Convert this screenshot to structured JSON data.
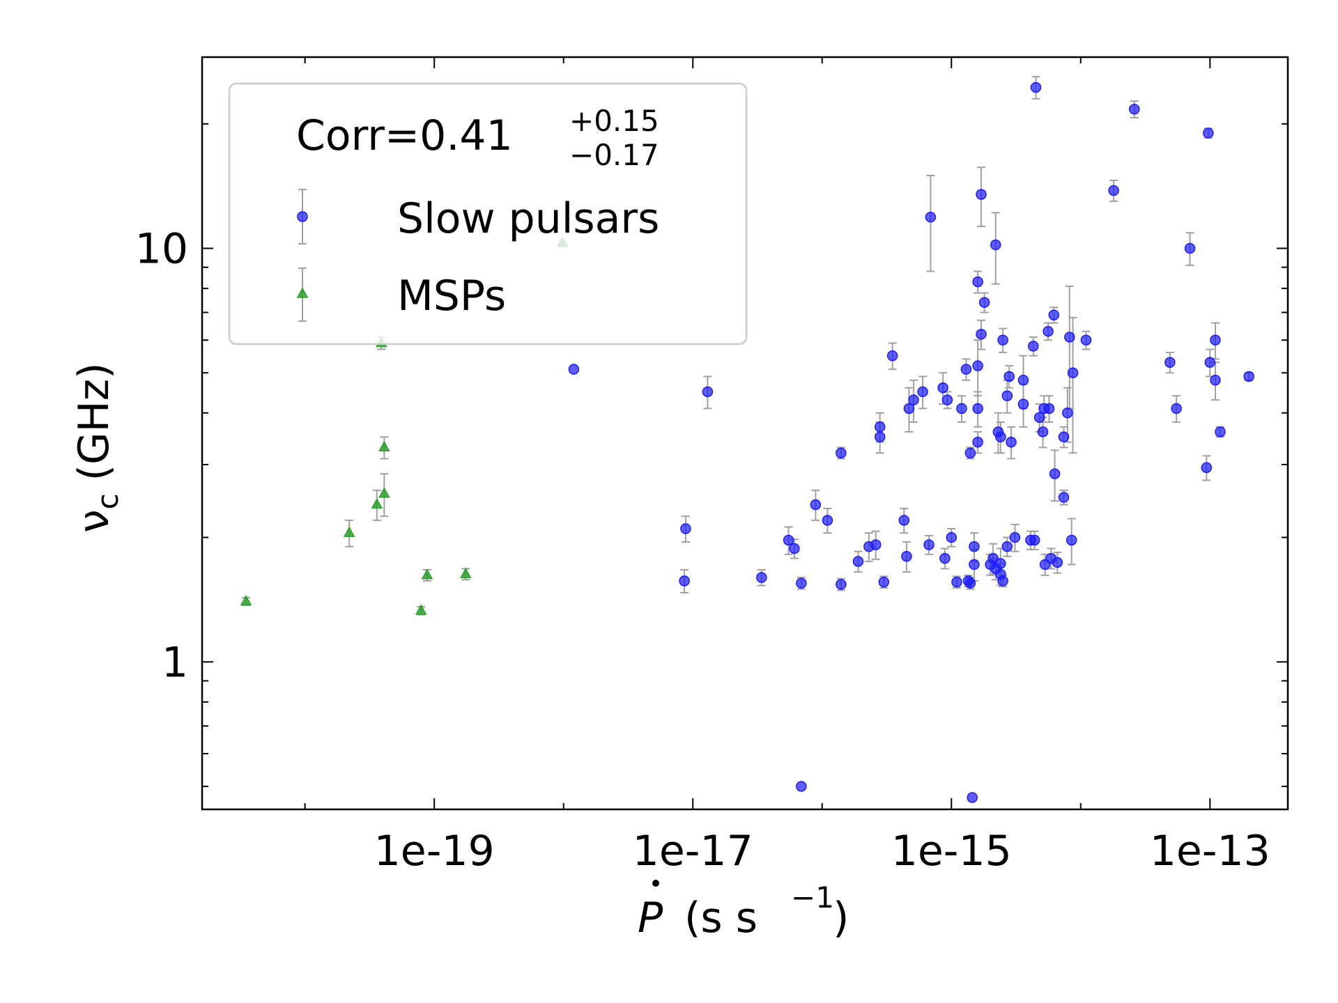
{
  "chart_data": {
    "type": "scatter",
    "x_scale": "log",
    "y_scale": "log",
    "xlim": [
      1.6e-21,
      4e-13
    ],
    "ylim": [
      0.44,
      29
    ],
    "x_ticks": [
      {
        "value": 1e-19,
        "label": "1e-19"
      },
      {
        "value": 1e-17,
        "label": "1e-17"
      },
      {
        "value": 1e-15,
        "label": "1e-15"
      },
      {
        "value": 1e-13,
        "label": "1e-13"
      }
    ],
    "y_ticks": [
      {
        "value": 1,
        "label": "1"
      },
      {
        "value": 10,
        "label": "10"
      }
    ],
    "xlabel_symbol": "P",
    "xlabel_units": "(s s",
    "xlabel_exp": "−1",
    "xlabel_close": ")",
    "ylabel_symbol": "ν",
    "ylabel_sub": "c",
    "ylabel_units": "(GHz)",
    "legend": {
      "placement": "upper-left",
      "corr_prefix": "Corr=0.41",
      "corr_plus": "+0.15",
      "corr_minus": "−0.17",
      "entries": [
        "Slow pulsars",
        "MSPs"
      ]
    },
    "colors": {
      "slow_pulsars": "#1a1aff",
      "msps": "#2ca02c",
      "errorbar": "#a0a0a0"
    },
    "series": [
      {
        "name": "Slow pulsars",
        "marker": "circle",
        "points": [
          [
            4.5e-15,
            24.5,
            1.5
          ],
          [
            2.6e-14,
            21.7,
            1.0
          ],
          [
            1.8e-14,
            13.8,
            0.8
          ],
          [
            9.7e-14,
            19.0,
            0.5
          ],
          [
            6.9e-16,
            11.9,
            3.1
          ],
          [
            1.7e-15,
            13.5,
            2.2
          ],
          [
            2.2e-15,
            10.2,
            2.0
          ],
          [
            7e-14,
            10.0,
            0.9
          ],
          [
            1.2e-18,
            5.1,
            0.0
          ],
          [
            1.6e-15,
            8.3,
            0.5
          ],
          [
            1.8e-15,
            7.4,
            0.4
          ],
          [
            1.7e-15,
            6.2,
            0.5
          ],
          [
            2.5e-15,
            6.0,
            0.4
          ],
          [
            4.3e-15,
            5.8,
            0.3
          ],
          [
            5.6e-15,
            6.3,
            0.3
          ],
          [
            6.2e-15,
            6.9,
            0.3
          ],
          [
            8.2e-15,
            6.1,
            2.0
          ],
          [
            1.1e-14,
            6.0,
            0.3
          ],
          [
            3.5e-16,
            5.5,
            0.4
          ],
          [
            4.9e-14,
            5.3,
            0.3
          ],
          [
            1e-13,
            5.3,
            0.4
          ],
          [
            1.1e-13,
            6.0,
            0.6
          ],
          [
            1.1e-13,
            4.8,
            0.5
          ],
          [
            2e-13,
            4.9,
            0.1
          ],
          [
            1.3e-17,
            4.5,
            0.4
          ],
          [
            1.3e-15,
            5.1,
            0.3
          ],
          [
            1.6e-15,
            5.2,
            0.8
          ],
          [
            2.8e-15,
            4.9,
            0.3
          ],
          [
            3.6e-15,
            4.8,
            0.7
          ],
          [
            8.6e-16,
            4.6,
            0.4
          ],
          [
            6e-16,
            4.5,
            0.4
          ],
          [
            5.1e-16,
            4.3,
            0.5
          ],
          [
            4.7e-16,
            4.1,
            0.5
          ],
          [
            9.3e-16,
            4.3,
            0.2
          ],
          [
            1.2e-15,
            4.1,
            0.3
          ],
          [
            1.6e-15,
            4.1,
            0.4
          ],
          [
            2.7e-15,
            4.4,
            0.4
          ],
          [
            3.6e-15,
            4.2,
            0.5
          ],
          [
            4.8e-15,
            3.9,
            0.3
          ],
          [
            5.2e-15,
            4.1,
            0.3
          ],
          [
            5.7e-15,
            4.1,
            0.3
          ],
          [
            7.9e-15,
            4.0,
            0.6
          ],
          [
            8.7e-15,
            5.0,
            1.8
          ],
          [
            5.5e-14,
            4.1,
            0.3
          ],
          [
            2.8e-16,
            3.7,
            0.3
          ],
          [
            2.8e-16,
            3.5,
            0.3
          ],
          [
            2.3e-15,
            3.6,
            0.4
          ],
          [
            2.4e-15,
            3.5,
            0.3
          ],
          [
            2.9e-15,
            3.4,
            0.3
          ],
          [
            5.1e-15,
            3.6,
            0.3
          ],
          [
            7.4e-15,
            3.5,
            0.2
          ],
          [
            1.6e-15,
            3.4,
            0.2
          ],
          [
            1.4e-15,
            3.2,
            0.1
          ],
          [
            1.4e-16,
            3.2,
            0.1
          ],
          [
            1.2e-13,
            3.6,
            0.1
          ],
          [
            6.3e-15,
            2.85,
            0.4
          ],
          [
            9.4e-14,
            2.95,
            0.2
          ],
          [
            7.4e-15,
            2.5,
            0.1
          ],
          [
            8.9e-17,
            2.4,
            0.2
          ],
          [
            1.1e-16,
            2.2,
            0.15
          ],
          [
            4.3e-16,
            2.2,
            0.15
          ],
          [
            8.8e-18,
            2.1,
            0.15
          ],
          [
            5.5e-17,
            1.97,
            0.15
          ],
          [
            6.1e-17,
            1.88,
            0.1
          ],
          [
            2.3e-16,
            1.9,
            0.15
          ],
          [
            2.6e-16,
            1.92,
            0.15
          ],
          [
            6.7e-16,
            1.92,
            0.1
          ],
          [
            1e-15,
            2.0,
            0.1
          ],
          [
            1.5e-15,
            1.9,
            0.15
          ],
          [
            2.7e-15,
            1.9,
            0.1
          ],
          [
            3.1e-15,
            2.0,
            0.15
          ],
          [
            4.1e-15,
            1.97,
            0.1
          ],
          [
            4.4e-15,
            1.97,
            0.1
          ],
          [
            8.5e-15,
            1.97,
            0.25
          ],
          [
            1.9e-16,
            1.75,
            0.1
          ],
          [
            4.5e-16,
            1.8,
            0.15
          ],
          [
            8.9e-16,
            1.78,
            0.1
          ],
          [
            1.5e-15,
            1.72,
            0.15
          ],
          [
            2e-15,
            1.72,
            0.1
          ],
          [
            2.1e-15,
            1.78,
            0.15
          ],
          [
            2.4e-15,
            1.73,
            0.15
          ],
          [
            5.3e-15,
            1.72,
            0.1
          ],
          [
            5.9e-15,
            1.78,
            0.1
          ],
          [
            6.6e-15,
            1.74,
            0.1
          ],
          [
            2.2e-15,
            1.68,
            0.1
          ],
          [
            2.4e-15,
            1.63,
            0.1
          ],
          [
            2.5e-15,
            1.57,
            0.05
          ],
          [
            8.6e-18,
            1.57,
            0.1
          ],
          [
            3.4e-17,
            1.6,
            0.07
          ],
          [
            6.9e-17,
            1.55,
            0.05
          ],
          [
            1.4e-16,
            1.54,
            0.05
          ],
          [
            3e-16,
            1.56,
            0.05
          ],
          [
            1.1e-15,
            1.56,
            0.05
          ],
          [
            1.35e-15,
            1.57,
            0.05
          ],
          [
            1.4e-15,
            1.55,
            0.05
          ],
          [
            6.9e-17,
            0.5,
            0.0
          ],
          [
            1.45e-15,
            0.47,
            0.0
          ]
        ]
      },
      {
        "name": "MSPs",
        "marker": "triangle",
        "points": [
          [
            3.5e-21,
            1.4,
            0.03
          ],
          [
            2.2e-20,
            2.05,
            0.15
          ],
          [
            3.6e-20,
            2.4,
            0.2
          ],
          [
            3.9e-20,
            5.9,
            0.2
          ],
          [
            4.1e-20,
            2.55,
            0.3
          ],
          [
            4.1e-20,
            3.3,
            0.2
          ],
          [
            8.8e-20,
            1.62,
            0.05
          ],
          [
            1.75e-19,
            1.63,
            0.05
          ],
          [
            7.9e-20,
            1.33,
            0.03
          ],
          [
            9.8e-19,
            10.3,
            0.1
          ]
        ]
      }
    ]
  }
}
